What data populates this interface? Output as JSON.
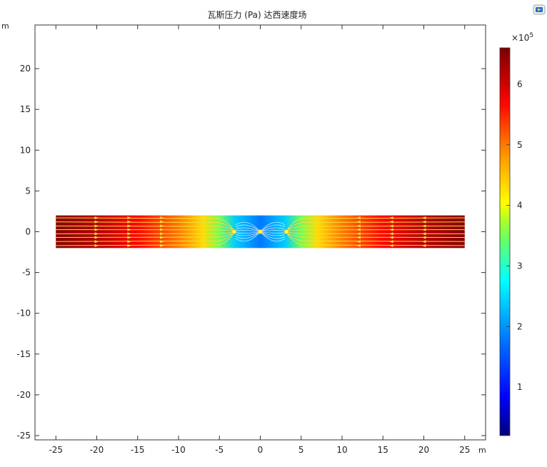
{
  "chart_data": {
    "type": "heatmap",
    "title": "瓦斯压力 (Pa) 达西速度场",
    "xlabel": "m",
    "ylabel": "m",
    "xlim": [
      -27.5,
      27.5
    ],
    "ylim": [
      -25.5,
      25.5
    ],
    "xticks": [
      -25,
      -20,
      -15,
      -10,
      -5,
      0,
      5,
      10,
      15,
      20,
      25
    ],
    "yticks": [
      -25,
      -20,
      -15,
      -10,
      -5,
      0,
      5,
      10,
      15,
      20
    ],
    "domain": {
      "x": [
        -25,
        25
      ],
      "y": [
        -2,
        2
      ]
    },
    "pressure_profile": {
      "x": [
        -25,
        -20,
        -15,
        -10,
        -7,
        -5,
        -3,
        0,
        3,
        5,
        7,
        10,
        15,
        20,
        25
      ],
      "values": [
        650000,
        620000,
        570000,
        500000,
        430000,
        350000,
        240000,
        180000,
        240000,
        350000,
        430000,
        500000,
        570000,
        620000,
        650000
      ]
    },
    "streamlines": {
      "color": "#f0e040",
      "y_levels": [
        -1.7,
        -1.2,
        -0.7,
        -0.25,
        0.25,
        0.7,
        1.2,
        1.7
      ],
      "sink_points": [
        [
          -3.2,
          0
        ],
        [
          0,
          0
        ],
        [
          3.2,
          0
        ]
      ]
    },
    "colorbar": {
      "multiplier_label": "×10",
      "multiplier_exponent": "5",
      "range": [
        20000,
        660000
      ],
      "ticks": [
        1,
        2,
        3,
        4,
        5,
        6
      ],
      "colormap": "rainbow"
    }
  },
  "ui": {
    "icon_name": "display-icon"
  }
}
